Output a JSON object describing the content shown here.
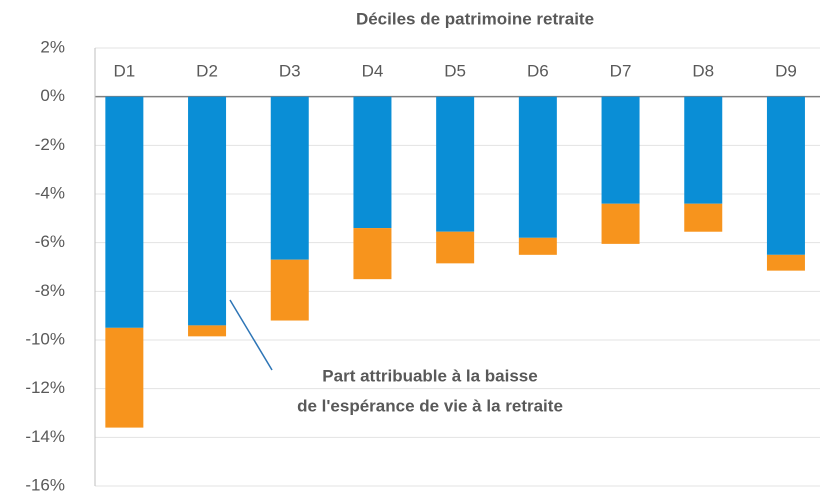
{
  "chart_data": {
    "type": "stacked_bar",
    "title": "Déciles de patrimoine retraite",
    "categories": [
      "D1",
      "D2",
      "D3",
      "D4",
      "D5",
      "D6",
      "D7",
      "D8",
      "D9"
    ],
    "series": [
      {
        "color": "#0a8ed6",
        "values": [
          -9.5,
          -9.4,
          -6.7,
          -5.4,
          -5.55,
          -5.8,
          -4.4,
          -4.4,
          -6.5
        ]
      },
      {
        "color": "#f7941d",
        "values": [
          -4.1,
          -0.45,
          -2.5,
          -2.1,
          -1.3,
          -0.7,
          -1.65,
          -1.15,
          -0.65
        ]
      }
    ],
    "ylim": [
      -16,
      2
    ],
    "yticks": [
      {
        "value": 2,
        "label": "2%"
      },
      {
        "value": 0,
        "label": "0%"
      },
      {
        "value": -2,
        "label": "-2%"
      },
      {
        "value": -4,
        "label": "-4%"
      },
      {
        "value": -6,
        "label": "-6%"
      },
      {
        "value": -8,
        "label": "-8%"
      },
      {
        "value": -10,
        "label": "-10%"
      },
      {
        "value": -12,
        "label": "-12%"
      },
      {
        "value": -14,
        "label": "-14%"
      },
      {
        "value": -16,
        "label": "-16%"
      }
    ],
    "grid": true,
    "annotation": [
      "Part attribuable à la baisse",
      "de l'espérance de vie à la retraite"
    ]
  }
}
